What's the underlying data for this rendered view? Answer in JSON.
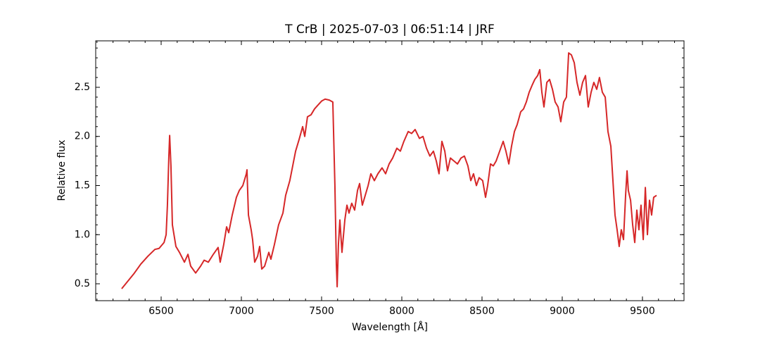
{
  "chart_data": {
    "type": "line",
    "title": "T CrB | 2025-07-03 | 06:51:14 | JRF",
    "xlabel": "Wavelength [Å]",
    "ylabel": "Relative flux",
    "color": "#d62728",
    "xlim": [
      6092,
      9759
    ],
    "ylim": [
      0.328,
      2.973
    ],
    "xticks": [
      6500,
      7000,
      7500,
      8000,
      8500,
      9000,
      9500
    ],
    "yticks": [
      0.5,
      1.0,
      1.5,
      2.0,
      2.5
    ],
    "xminorticks": [
      6100,
      6200,
      6300,
      6400,
      6500,
      6600,
      6700,
      6800,
      6900,
      7000,
      7100,
      7200,
      7300,
      7400,
      7500,
      7600,
      7700,
      7800,
      7900,
      8000,
      8100,
      8200,
      8300,
      8400,
      8500,
      8600,
      8700,
      8800,
      8900,
      9000,
      9100,
      9200,
      9300,
      9400,
      9500,
      9600,
      9700
    ],
    "yminorticks": [
      0.4,
      0.5,
      0.6,
      0.7,
      0.8,
      0.9,
      1.0,
      1.1,
      1.2,
      1.3,
      1.4,
      1.5,
      1.6,
      1.7,
      1.8,
      1.9,
      2.0,
      2.1,
      2.2,
      2.3,
      2.4,
      2.5,
      2.6,
      2.7,
      2.8,
      2.9
    ],
    "x": [
      6254,
      6329,
      6373,
      6417,
      6461,
      6487,
      6518,
      6531,
      6539,
      6548,
      6553,
      6561,
      6570,
      6592,
      6614,
      6645,
      6667,
      6684,
      6715,
      6746,
      6768,
      6794,
      6825,
      6855,
      6868,
      6890,
      6908,
      6921,
      6943,
      6969,
      6987,
      7009,
      7031,
      7035,
      7044,
      7061,
      7070,
      7083,
      7101,
      7114,
      7127,
      7145,
      7171,
      7184,
      7206,
      7232,
      7259,
      7276,
      7302,
      7320,
      7338,
      7360,
      7382,
      7395,
      7412,
      7434,
      7456,
      7478,
      7500,
      7522,
      7548,
      7570,
      7583,
      7592,
      7597,
      7605,
      7614,
      7627,
      7645,
      7658,
      7671,
      7688,
      7706,
      7724,
      7737,
      7754,
      7772,
      7790,
      7807,
      7829,
      7851,
      7877,
      7899,
      7921,
      7943,
      7969,
      7991,
      8013,
      8040,
      8061,
      8083,
      8110,
      8132,
      8154,
      8175,
      8197,
      8215,
      8232,
      8250,
      8268,
      8285,
      8303,
      8325,
      8347,
      8369,
      8390,
      8412,
      8430,
      8447,
      8465,
      8482,
      8504,
      8522,
      8535,
      8553,
      8570,
      8588,
      8610,
      8632,
      8649,
      8667,
      8684,
      8702,
      8719,
      8741,
      8759,
      8776,
      8794,
      8812,
      8829,
      8847,
      8860,
      8873,
      8886,
      8904,
      8921,
      8939,
      8956,
      8974,
      8991,
      9009,
      9026,
      9040,
      9057,
      9075,
      9092,
      9110,
      9127,
      9145,
      9162,
      9180,
      9197,
      9215,
      9232,
      9250,
      9268,
      9285,
      9303,
      9316,
      9329,
      9342,
      9355,
      9368,
      9382,
      9395,
      9404,
      9412,
      9426,
      9439,
      9452,
      9465,
      9478,
      9491,
      9505,
      9518,
      9531,
      9544,
      9557,
      9570,
      9588
    ],
    "values": [
      0.45,
      0.6,
      0.7,
      0.78,
      0.85,
      0.86,
      0.92,
      1.0,
      1.3,
      1.8,
      2.01,
      1.7,
      1.1,
      0.88,
      0.82,
      0.72,
      0.8,
      0.68,
      0.61,
      0.68,
      0.74,
      0.72,
      0.8,
      0.87,
      0.72,
      0.9,
      1.08,
      1.02,
      1.2,
      1.38,
      1.45,
      1.5,
      1.62,
      1.66,
      1.2,
      1.05,
      0.95,
      0.72,
      0.78,
      0.88,
      0.65,
      0.68,
      0.82,
      0.75,
      0.9,
      1.1,
      1.22,
      1.4,
      1.55,
      1.7,
      1.85,
      1.97,
      2.1,
      2.0,
      2.2,
      2.22,
      2.28,
      2.32,
      2.36,
      2.38,
      2.37,
      2.35,
      1.5,
      0.7,
      0.47,
      0.9,
      1.15,
      0.82,
      1.15,
      1.3,
      1.22,
      1.32,
      1.25,
      1.45,
      1.52,
      1.3,
      1.4,
      1.5,
      1.62,
      1.55,
      1.62,
      1.68,
      1.62,
      1.72,
      1.78,
      1.88,
      1.85,
      1.95,
      2.05,
      2.03,
      2.07,
      1.98,
      2.0,
      1.88,
      1.8,
      1.85,
      1.75,
      1.62,
      1.95,
      1.85,
      1.65,
      1.78,
      1.75,
      1.72,
      1.78,
      1.8,
      1.7,
      1.55,
      1.62,
      1.5,
      1.58,
      1.55,
      1.38,
      1.5,
      1.72,
      1.7,
      1.75,
      1.85,
      1.95,
      1.85,
      1.72,
      1.9,
      2.05,
      2.12,
      2.25,
      2.28,
      2.35,
      2.45,
      2.52,
      2.58,
      2.62,
      2.68,
      2.45,
      2.3,
      2.55,
      2.58,
      2.48,
      2.35,
      2.3,
      2.15,
      2.35,
      2.4,
      2.85,
      2.83,
      2.75,
      2.55,
      2.42,
      2.55,
      2.62,
      2.3,
      2.45,
      2.55,
      2.48,
      2.6,
      2.45,
      2.4,
      2.05,
      1.9,
      1.55,
      1.2,
      1.05,
      0.88,
      1.05,
      0.95,
      1.4,
      1.65,
      1.45,
      1.35,
      1.1,
      0.92,
      1.25,
      1.05,
      1.3,
      0.95,
      1.48,
      1.0,
      1.35,
      1.2,
      1.38,
      1.4
    ]
  }
}
